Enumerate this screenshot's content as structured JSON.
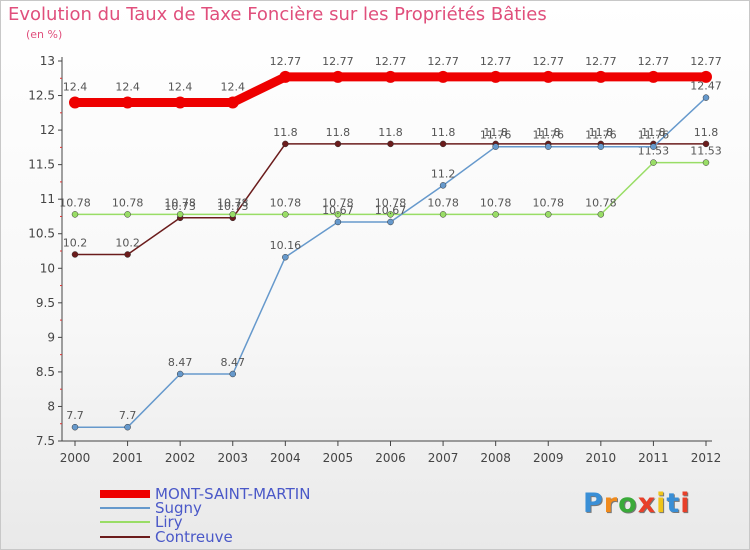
{
  "title": "Evolution du Taux de Taxe Foncière sur les Propriétés Bâties",
  "unit_label": "(en %)",
  "brand": "Proxiti",
  "colors": {
    "title": "#e04f7c",
    "legend_text": "#4a58c8",
    "axis": "#555555"
  },
  "chart_data": {
    "type": "line",
    "title": "Evolution du Taux de Taxe Foncière sur les Propriétés Bâties",
    "ylabel": "(en %)",
    "xlabel": "",
    "x": [
      "2000",
      "2001",
      "2002",
      "2003",
      "2004",
      "2005",
      "2006",
      "2007",
      "2008",
      "2009",
      "2010",
      "2011",
      "2012"
    ],
    "ylim": [
      7.5,
      13
    ],
    "yticks": [
      "7.5",
      "8",
      "8.5",
      "9",
      "9.5",
      "10",
      "10.5",
      "11",
      "11.5",
      "12",
      "12.5",
      "13"
    ],
    "grid": false,
    "legend_position": "bottom-left",
    "series": [
      {
        "name": "MONT-SAINT-MARTIN",
        "color": "#ee0000",
        "values": [
          12.4,
          12.4,
          12.4,
          12.4,
          12.77,
          12.77,
          12.77,
          12.77,
          12.77,
          12.77,
          12.77,
          12.77,
          12.77
        ],
        "labels": [
          "12.4",
          "12.4",
          "12.4",
          "12.4",
          "12.77",
          "12.77",
          "12.77",
          "12.77",
          "12.77",
          "12.77",
          "12.77",
          "12.77",
          "12.77"
        ]
      },
      {
        "name": "Sugny",
        "color": "#6699cc",
        "values": [
          7.7,
          7.7,
          8.47,
          8.47,
          10.16,
          10.67,
          10.67,
          11.2,
          11.76,
          11.76,
          11.76,
          11.76,
          12.47
        ],
        "labels": [
          "7.7",
          "7.7",
          "8.47",
          "8.47",
          "10.16",
          "10.67",
          "10.67",
          "11.2",
          "11.76",
          "11.76",
          "11.76",
          "11.76",
          "12.47"
        ]
      },
      {
        "name": "Liry",
        "color": "#99dd66",
        "values": [
          10.78,
          10.78,
          10.78,
          10.78,
          10.78,
          10.78,
          10.78,
          10.78,
          10.78,
          10.78,
          10.78,
          11.53,
          11.53
        ],
        "labels": [
          "10.78",
          "10.78",
          "10.78",
          "10.78",
          "10.78",
          "10.78",
          "10.78",
          "10.78",
          "10.78",
          "10.78",
          "10.78",
          "11.53",
          "11.53"
        ]
      },
      {
        "name": "Contreuve",
        "color": "#6b1c1c",
        "values": [
          10.2,
          10.2,
          10.73,
          10.73,
          11.8,
          11.8,
          11.8,
          11.8,
          11.8,
          11.8,
          11.8,
          11.8,
          11.8
        ],
        "labels": [
          "10.2",
          "10.2",
          "10.73",
          "10.73",
          "11.8",
          "11.8",
          "11.8",
          "11.8",
          "11.8",
          "11.8",
          "11.8",
          "11.8",
          "11.8"
        ]
      }
    ]
  }
}
